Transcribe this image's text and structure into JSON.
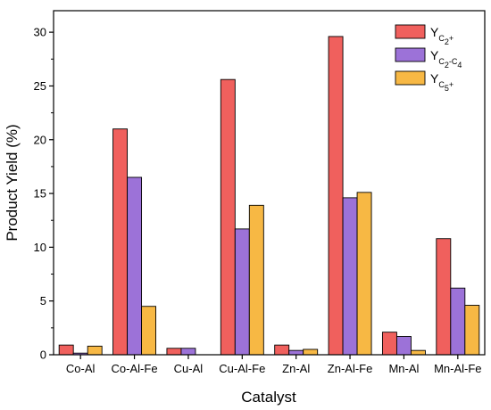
{
  "chart_data": {
    "type": "bar",
    "xlabel": "Catalyst",
    "ylabel": "Product Yield (%)",
    "ylim": [
      0,
      32
    ],
    "yticks": [
      0,
      5,
      10,
      15,
      20,
      25,
      30
    ],
    "categories": [
      "Co-Al",
      "Co-Al-Fe",
      "Cu-Al",
      "Cu-Al-Fe",
      "Zn-Al",
      "Zn-Al-Fe",
      "Mn-Al",
      "Mn-Al-Fe"
    ],
    "series": [
      {
        "name": "YC2+",
        "label": {
          "main": "Y",
          "sub": "C",
          "sub2": "2",
          "tail": "+",
          "range": ""
        },
        "color": "#f0605d",
        "values": [
          0.9,
          21.0,
          0.6,
          25.6,
          0.9,
          29.6,
          2.1,
          10.8
        ]
      },
      {
        "name": "YC2-C4",
        "label": {
          "main": "Y",
          "sub": "C",
          "sub2": "2",
          "tail": "-C",
          "range": "4"
        },
        "color": "#9c72d8",
        "values": [
          0.15,
          16.5,
          0.6,
          11.7,
          0.4,
          14.6,
          1.7,
          6.2
        ]
      },
      {
        "name": "YC5+",
        "label": {
          "main": "Y",
          "sub": "C",
          "sub2": "5",
          "tail": "+",
          "range": ""
        },
        "color": "#f7b844",
        "values": [
          0.8,
          4.5,
          0.0,
          13.9,
          0.5,
          15.1,
          0.4,
          4.6
        ]
      }
    ],
    "legend_position": "top-right",
    "grid": false
  }
}
